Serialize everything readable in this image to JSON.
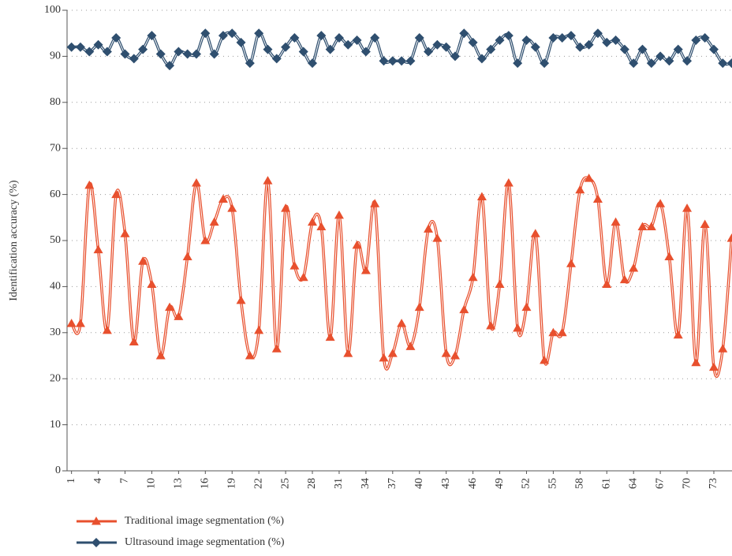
{
  "chart_data": {
    "type": "line",
    "y_label": "Identification accuracy (%)",
    "x": [
      1,
      2,
      3,
      4,
      5,
      6,
      7,
      8,
      9,
      10,
      11,
      12,
      13,
      14,
      15,
      16,
      17,
      18,
      19,
      20,
      21,
      22,
      23,
      24,
      25,
      26,
      27,
      28,
      29,
      30,
      31,
      32,
      33,
      34,
      35,
      36,
      37,
      38,
      39,
      40,
      41,
      42,
      43,
      44,
      45,
      46,
      47,
      48,
      49,
      50,
      51,
      52,
      53,
      54,
      55,
      56,
      57,
      58,
      59,
      60,
      61,
      62,
      63,
      64,
      65,
      66,
      67,
      68,
      69,
      70,
      71,
      72,
      73,
      74,
      75
    ],
    "xlim": [
      0.5,
      75.5
    ],
    "xticks": [
      1,
      4,
      7,
      10,
      13,
      16,
      19,
      22,
      25,
      28,
      31,
      34,
      37,
      40,
      43,
      46,
      49,
      52,
      55,
      58,
      61,
      64,
      67,
      70,
      73
    ],
    "ylim": [
      0,
      100
    ],
    "yticks": [
      0,
      10,
      20,
      30,
      40,
      50,
      60,
      70,
      80,
      90,
      100
    ],
    "grid": true,
    "legend": "bottom-left",
    "series": [
      {
        "name": "Traditional image segmentation (%)",
        "color": "#e8502e",
        "marker": "triangle",
        "values": [
          32,
          32,
          62,
          48,
          30.5,
          60,
          51.5,
          28,
          45.5,
          40.5,
          25,
          35.5,
          33.5,
          46.5,
          62.5,
          50,
          54,
          59,
          57,
          37,
          25,
          30.5,
          63,
          26.5,
          57,
          44.5,
          42,
          54,
          53,
          29,
          55.5,
          25.5,
          49,
          43.5,
          58,
          24.5,
          25.5,
          32,
          27,
          35.5,
          52.5,
          50.5,
          25.5,
          25,
          35,
          42,
          59.5,
          31.5,
          40.5,
          62.5,
          31,
          35.5,
          51.5,
          24,
          30,
          30,
          45,
          61,
          63.5,
          59,
          40.5,
          54,
          41.5,
          44,
          53,
          53,
          58,
          46.5,
          29.5,
          57,
          23.5,
          53.5,
          22.5,
          26.5,
          50.5
        ]
      },
      {
        "name": "Ultrasound image segmentation (%)",
        "color": "#2f4f6f",
        "marker": "diamond",
        "values": [
          92,
          92,
          91,
          92.5,
          91,
          94,
          90.5,
          89.5,
          91.5,
          94.5,
          90.5,
          88,
          91,
          90.5,
          90.5,
          95,
          90.5,
          94.5,
          95,
          93,
          88.5,
          95,
          91.5,
          89.5,
          92,
          94,
          91,
          88.5,
          94.5,
          91.5,
          94,
          92.5,
          93.5,
          91,
          94,
          89,
          89,
          89,
          89,
          94,
          91,
          92.5,
          92,
          90,
          95,
          93,
          89.5,
          91.5,
          93.5,
          94.5,
          88.5,
          93.5,
          92,
          88.5,
          94,
          94,
          94.5,
          92,
          92.5,
          95,
          93,
          93.5,
          91.5,
          88.5,
          91.5,
          88.5,
          90,
          89,
          91.5,
          89,
          93.5,
          94,
          91.5,
          88.5,
          88.5
        ]
      }
    ]
  }
}
